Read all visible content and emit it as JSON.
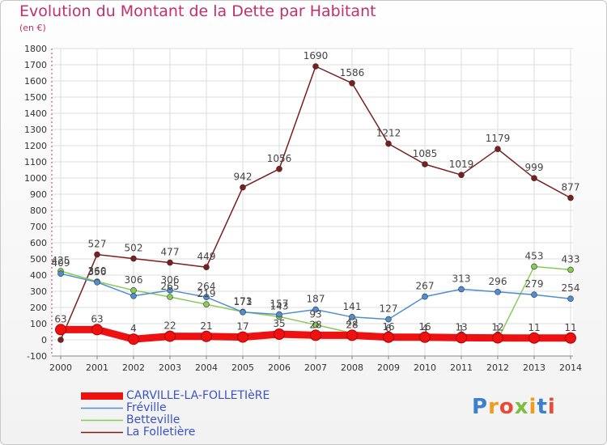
{
  "header": {
    "title": "Evolution du Montant de la Dette par Habitant",
    "subtitle": "(en €)"
  },
  "logo": {
    "text": "Proxiti"
  },
  "colors": {
    "title": "#c0306a",
    "legend_text": "#3a53c7",
    "grid": "#dddddd",
    "axis": "#888888"
  },
  "chart_data": {
    "type": "line",
    "title": "Evolution du Montant de la Dette par Habitant",
    "subtitle": "(en €)",
    "xlabel": "",
    "ylabel": "",
    "ylim": [
      -100,
      1800
    ],
    "ytick_step": 100,
    "grid": true,
    "legend_position": "bottom-left",
    "x": [
      "2000",
      "2001",
      "2002",
      "2003",
      "2004",
      "2005",
      "2006",
      "2007",
      "2008",
      "2009",
      "2010",
      "2011",
      "2012",
      "2013",
      "2014"
    ],
    "series": [
      {
        "name": "CARVILLE-LA-FOLLETIèRE",
        "color": "#ee1111",
        "values": [
          63,
          63,
          4,
          22,
          21,
          17,
          35,
          28,
          28,
          16,
          16,
          13,
          12,
          11,
          11
        ],
        "labels": [
          "63",
          "63",
          "4",
          "22",
          "21",
          "17",
          "35",
          "28",
          "28",
          "16",
          "16",
          "13",
          "12",
          "11",
          "11"
        ]
      },
      {
        "name": "Fréville",
        "color": "#4f8fcf",
        "values": [
          409,
          356,
          271,
          306,
          264,
          171,
          157,
          187,
          141,
          127,
          267,
          313,
          296,
          279,
          254
        ],
        "labels": [
          "409",
          "356",
          "",
          "306",
          "264",
          "171",
          "157",
          "187",
          "141",
          "127",
          "267",
          "313",
          "296",
          "279",
          "254"
        ]
      },
      {
        "name": "Betteville",
        "color": "#88cc55",
        "values": [
          425,
          360,
          306,
          265,
          219,
          173,
          143,
          93,
          42,
          6,
          4,
          1,
          1,
          453,
          433
        ],
        "labels": [
          "425",
          "360",
          "306",
          "265",
          "219",
          "173",
          "143",
          "93",
          "42",
          "6",
          "4",
          "1",
          "1",
          "453",
          "433"
        ]
      },
      {
        "name": "La Folletière",
        "color": "#7a1e1e",
        "values": [
          0,
          527,
          502,
          477,
          449,
          942,
          1056,
          1690,
          1586,
          1212,
          1085,
          1019,
          1179,
          999,
          877
        ],
        "labels": [
          "",
          "527",
          "502",
          "477",
          "449",
          "942",
          "1056",
          "1690",
          "1586",
          "1212",
          "1085",
          "1019",
          "1179",
          "999",
          "877"
        ]
      }
    ]
  }
}
